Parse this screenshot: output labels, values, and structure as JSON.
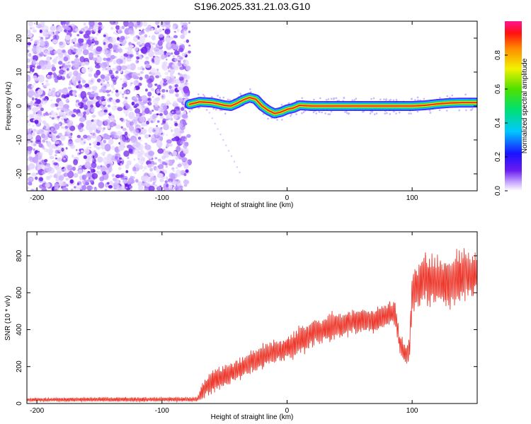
{
  "title": "S196.2025.331.21.03.G10",
  "colors": {
    "snr_line": "#ee3a2e",
    "scatter_purple": "#7b2ff7",
    "axis": "#000000"
  },
  "chart_data": [
    {
      "type": "heatmap",
      "name": "spectrogram",
      "xlabel": "Height of straight line (km)",
      "ylabel": "Frequency (Hz)",
      "xlim": [
        -208,
        152
      ],
      "ylim": [
        -25,
        25
      ],
      "xticks": [
        -200,
        -100,
        0,
        100
      ],
      "yticks": [
        -20,
        -10,
        0,
        10,
        20
      ],
      "noise_region_x": [
        -208,
        -78
      ],
      "ridge": {
        "description_x": [
          -78,
          -70,
          -60,
          -50,
          -45,
          -40,
          -35,
          -30,
          -25,
          -20,
          -15,
          -10,
          -5,
          0,
          5,
          10,
          20,
          40,
          60,
          80,
          100,
          110,
          120,
          130,
          140,
          152
        ],
        "freq_hz": [
          0.5,
          1.2,
          1.0,
          0.2,
          0.0,
          0.8,
          1.8,
          2.5,
          2.0,
          0.0,
          -1.3,
          -2.2,
          -1.8,
          -1.0,
          -0.6,
          0.2,
          0.0,
          0.0,
          0.0,
          0.0,
          0.0,
          0.2,
          0.6,
          0.9,
          1.0,
          1.0
        ]
      },
      "colorbar": {
        "label": "Normalized spectral amplitude",
        "range": [
          0.0,
          1.0
        ],
        "ticks": [
          0.0,
          0.2,
          0.4,
          0.6,
          0.8
        ]
      }
    },
    {
      "type": "line",
      "name": "snr",
      "xlabel": "Height of straight line (km)",
      "ylabel": "SNR (10 * v/v)",
      "xlim": [
        -208,
        152
      ],
      "ylim": [
        0,
        930
      ],
      "xticks": [
        -200,
        -100,
        0,
        100
      ],
      "yticks": [
        0,
        200,
        400,
        600,
        800
      ],
      "envelope": {
        "x": [
          -208,
          -150,
          -100,
          -72,
          -66,
          -60,
          -50,
          -40,
          -30,
          -20,
          -10,
          0,
          10,
          20,
          30,
          40,
          50,
          60,
          70,
          80,
          86,
          90,
          95,
          98,
          100,
          110,
          120,
          130,
          140,
          152
        ],
        "mid": [
          20,
          22,
          22,
          22,
          80,
          120,
          150,
          180,
          220,
          250,
          280,
          300,
          340,
          380,
          400,
          420,
          440,
          450,
          450,
          480,
          500,
          330,
          260,
          310,
          600,
          680,
          660,
          650,
          700,
          690
        ],
        "amp": [
          10,
          12,
          12,
          12,
          60,
          60,
          60,
          60,
          60,
          70,
          70,
          70,
          80,
          80,
          80,
          80,
          70,
          70,
          70,
          70,
          70,
          60,
          50,
          80,
          120,
          140,
          140,
          140,
          150,
          130
        ]
      }
    }
  ]
}
